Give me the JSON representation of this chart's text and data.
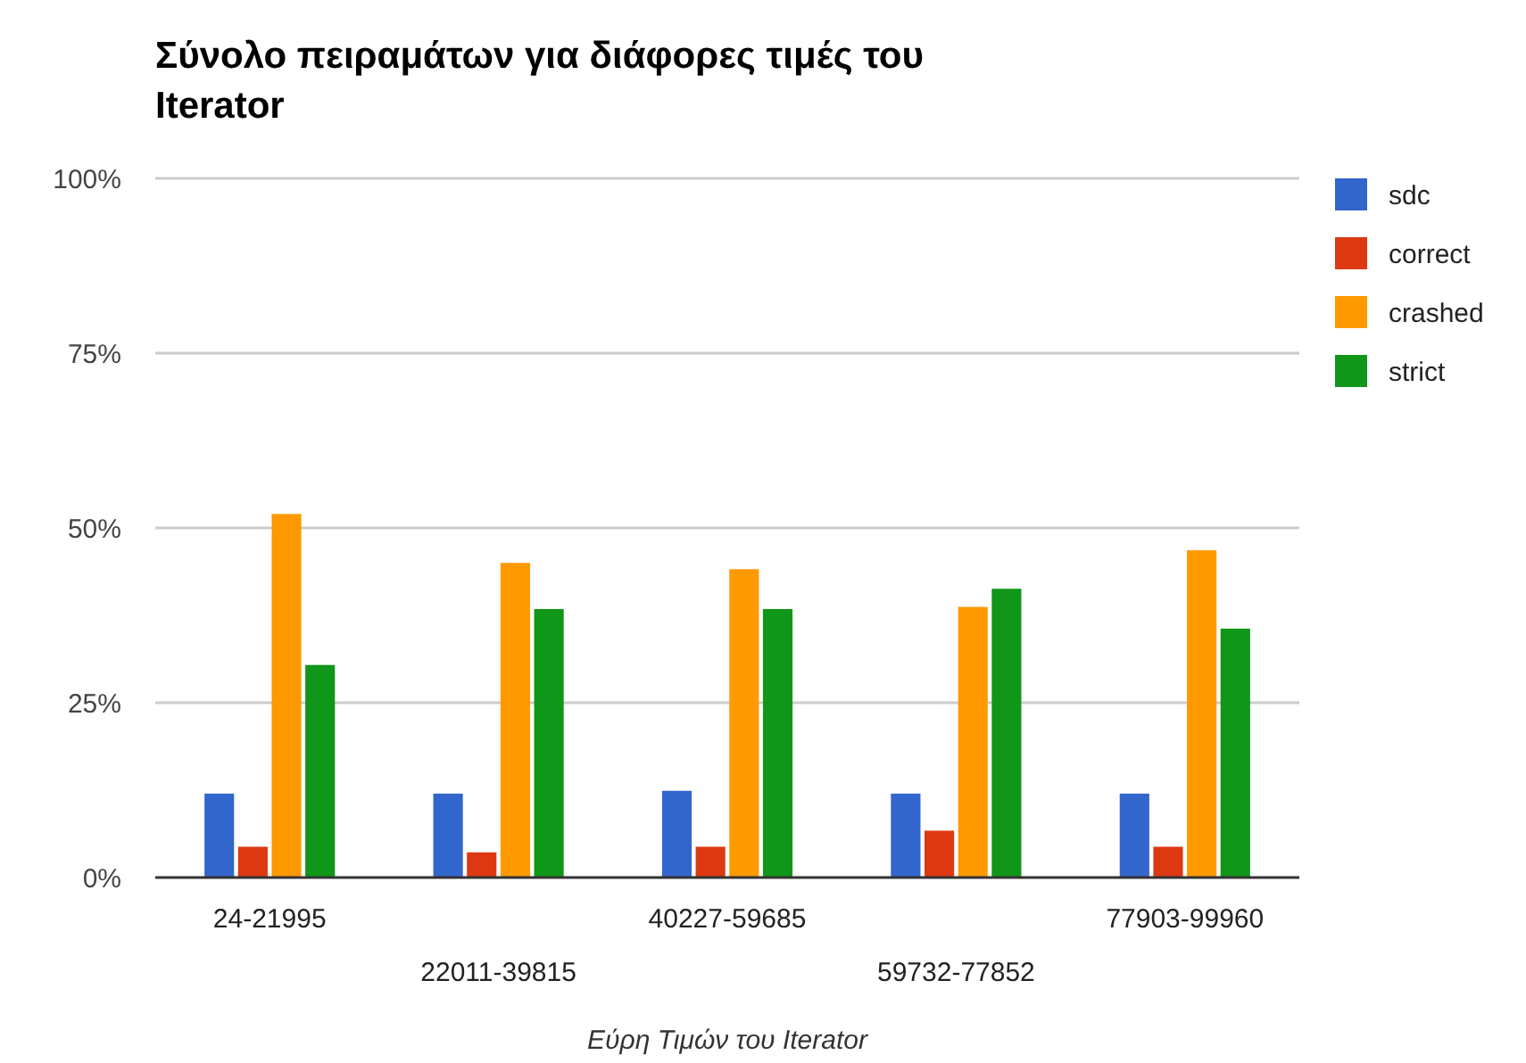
{
  "chart_data": {
    "type": "bar",
    "title": "Σύνολο πειραμάτων για διάφορες τιμές του Iterator",
    "xlabel": "Εύρη Τιμών του Iterator",
    "categories": [
      "24-21995",
      "22011-39815",
      "40227-59685",
      "59732-77852",
      "77903-99960"
    ],
    "series": [
      {
        "name": "sdc",
        "color": "#3366cc",
        "values": [
          12,
          12,
          12.4,
          12,
          12
        ]
      },
      {
        "name": "correct",
        "color": "#dc3912",
        "values": [
          4.4,
          3.6,
          4.4,
          6.7,
          4.4
        ]
      },
      {
        "name": "crashed",
        "color": "#ff9900",
        "values": [
          52,
          45,
          44.1,
          38.7,
          46.8
        ]
      },
      {
        "name": "strict",
        "color": "#109618",
        "values": [
          30.4,
          38.4,
          38.4,
          41.3,
          35.6
        ]
      }
    ],
    "ylim": [
      0,
      100
    ],
    "yticks": [
      {
        "value": 0,
        "label": "0%"
      },
      {
        "value": 25,
        "label": "25%"
      },
      {
        "value": 50,
        "label": "50%"
      },
      {
        "value": 75,
        "label": "75%"
      },
      {
        "value": 100,
        "label": "100%"
      }
    ],
    "grid": "y",
    "legend": "right"
  }
}
